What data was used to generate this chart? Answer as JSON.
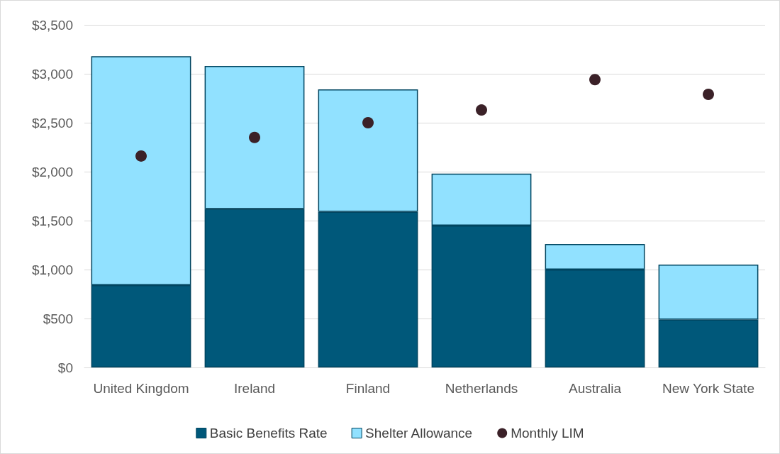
{
  "chart_data": {
    "type": "bar",
    "stacked": true,
    "categories": [
      "United Kingdom",
      "Ireland",
      "Finland",
      "Netherlands",
      "Australia",
      "New York State"
    ],
    "series": [
      {
        "name": "Basic Benefits Rate",
        "color": "#00587a",
        "values": [
          840,
          1620,
          1590,
          1450,
          1000,
          490
        ]
      },
      {
        "name": "Shelter Allowance",
        "color": "#91e1ff",
        "values": [
          2340,
          1460,
          1250,
          530,
          260,
          560
        ]
      },
      {
        "name": "Monthly LIM",
        "type": "scatter",
        "color": "#3b2128",
        "marker": "circle",
        "x": [
          "United Kingdom",
          "Ireland",
          "Finland",
          "Netherlands",
          "Australia",
          "New York State"
        ],
        "values": [
          2160,
          2350,
          2500,
          2630,
          2940,
          2790
        ]
      }
    ],
    "ylim": [
      0,
      3500
    ],
    "yticks": [
      {
        "value": 0,
        "label": "$0"
      },
      {
        "value": 500,
        "label": "$500"
      },
      {
        "value": 1000,
        "label": "$1,000"
      },
      {
        "value": 1500,
        "label": "$1,500"
      },
      {
        "value": 2000,
        "label": "$2,000"
      },
      {
        "value": 2500,
        "label": "$2,500"
      },
      {
        "value": 3000,
        "label": "$3,000"
      },
      {
        "value": 3500,
        "label": "$3,500"
      }
    ],
    "grid": "y",
    "legend": "bottom"
  }
}
